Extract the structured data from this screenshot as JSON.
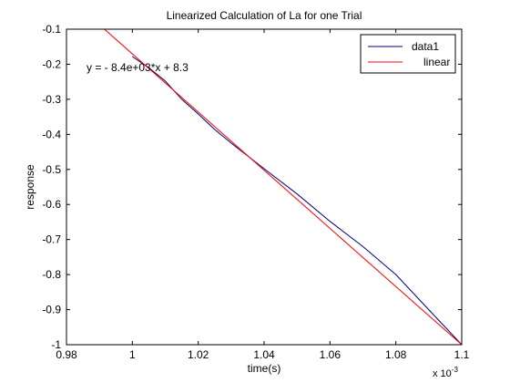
{
  "chart_data": {
    "type": "line",
    "title": "Linearized Calculation of La for one Trial",
    "xlabel": "time(s)",
    "ylabel": "response",
    "x_multiplier_label": "x 10",
    "x_multiplier_exponent": "-3",
    "xlim": [
      0.98,
      1.1
    ],
    "ylim": [
      -1.0,
      -0.1
    ],
    "x_ticks": [
      0.98,
      1.0,
      1.02,
      1.04,
      1.06,
      1.08,
      1.1
    ],
    "x_tick_labels": [
      "0.98",
      "1",
      "1.02",
      "1.04",
      "1.06",
      "1.08",
      "1.1"
    ],
    "y_ticks": [
      -0.1,
      -0.2,
      -0.3,
      -0.4,
      -0.5,
      -0.6,
      -0.7,
      -0.8,
      -0.9,
      -1.0
    ],
    "y_tick_labels": [
      "-0.1",
      "-0.2",
      "-0.3",
      "-0.4",
      "-0.5",
      "-0.6",
      "-0.7",
      "-0.8",
      "-0.9",
      "-1"
    ],
    "grid": false,
    "legend_position": "top-right",
    "annotation": "y = - 8.4e+03*x + 8.3",
    "series": [
      {
        "name": "data1",
        "color": "#00007f",
        "x": [
          1.0,
          1.005,
          1.01,
          1.015,
          1.02,
          1.025,
          1.03,
          1.04,
          1.05,
          1.06,
          1.07,
          1.08,
          1.09,
          1.1
        ],
        "y": [
          -0.178,
          -0.21,
          -0.248,
          -0.3,
          -0.342,
          -0.386,
          -0.425,
          -0.498,
          -0.57,
          -0.648,
          -0.72,
          -0.8,
          -0.9,
          -1.0
        ]
      },
      {
        "name": "linear",
        "color": "#ff0000",
        "x": [
          0.9915,
          1.1
        ],
        "y": [
          -0.1,
          -1.0
        ]
      }
    ]
  }
}
